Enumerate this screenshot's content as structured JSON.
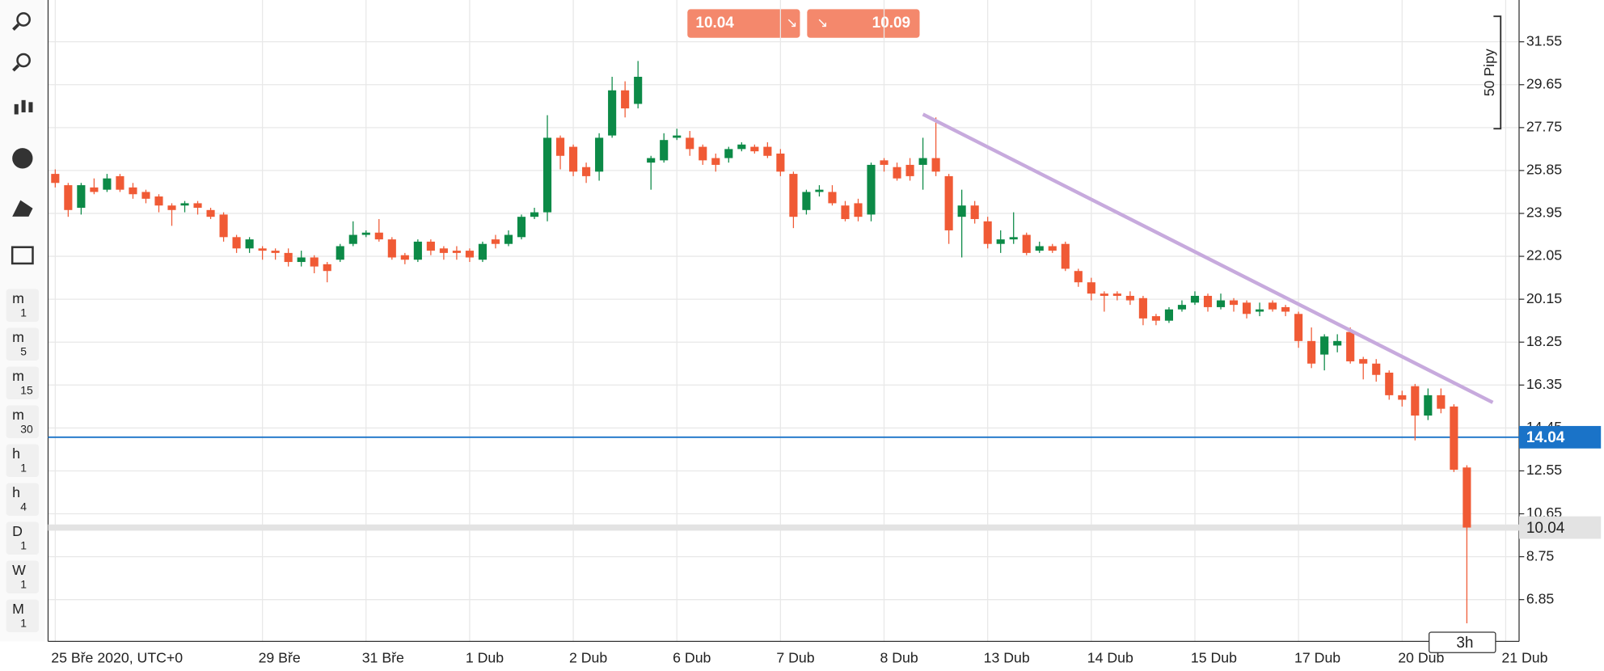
{
  "toolbar": {
    "timeframes": [
      [
        "m",
        "1"
      ],
      [
        "m",
        "5"
      ],
      [
        "m",
        "15"
      ],
      [
        "m",
        "30"
      ],
      [
        "h",
        "1"
      ],
      [
        "h",
        "4"
      ],
      [
        "D",
        "1"
      ],
      [
        "W",
        "1"
      ],
      [
        "M",
        "1"
      ]
    ]
  },
  "trade_buttons": {
    "sell": 10.04,
    "buy": 10.09
  },
  "chart_data": {
    "type": "candlestick",
    "categories": [
      "25 Bře 2020, UTC+0",
      null,
      null,
      null,
      null,
      null,
      null,
      null,
      null,
      null,
      null,
      null,
      null,
      null,
      null,
      null,
      "29 Bře",
      null,
      null,
      null,
      null,
      null,
      null,
      null,
      "31 Bře",
      null,
      null,
      null,
      null,
      null,
      null,
      null,
      "1 Dub",
      null,
      null,
      null,
      null,
      null,
      null,
      null,
      "2 Dub",
      null,
      null,
      null,
      null,
      null,
      null,
      null,
      "6 Dub",
      null,
      null,
      null,
      null,
      null,
      null,
      null,
      "7 Dub",
      null,
      null,
      null,
      null,
      null,
      null,
      null,
      "8 Dub",
      null,
      null,
      null,
      null,
      null,
      null,
      null,
      "13 Dub",
      null,
      null,
      null,
      null,
      null,
      null,
      null,
      "14 Dub",
      null,
      null,
      null,
      null,
      null,
      null,
      null,
      "15 Dub",
      null,
      null,
      null,
      null,
      null,
      null,
      null,
      "17 Dub",
      null,
      null,
      null,
      null,
      null,
      null,
      null,
      "20 Dub",
      null,
      null,
      null,
      null,
      null,
      null,
      null,
      "21 Dub"
    ],
    "open": [
      25.7,
      25.2,
      24.2,
      25.1,
      25.0,
      25.6,
      25.1,
      24.9,
      24.7,
      24.3,
      24.3,
      24.4,
      24.1,
      23.9,
      22.9,
      22.4,
      22.4,
      22.3,
      22.2,
      21.8,
      22.0,
      21.7,
      21.9,
      22.6,
      23.0,
      23.1,
      22.8,
      22.1,
      21.9,
      22.7,
      22.4,
      22.3,
      22.3,
      21.9,
      22.8,
      22.6,
      22.9,
      23.8,
      24.0,
      27.3,
      26.9,
      26.0,
      25.8,
      27.4,
      29.4,
      28.8,
      26.2,
      26.3,
      27.3,
      27.3,
      26.9,
      26.4,
      26.4,
      26.8,
      26.9,
      26.9,
      26.6,
      25.7,
      24.1,
      24.9,
      24.9,
      24.3,
      24.4,
      23.9,
      26.3,
      26.0,
      26.1,
      26.1,
      26.4,
      25.6,
      23.8,
      24.3,
      23.6,
      22.6,
      22.8,
      23.0,
      22.3,
      22.5,
      22.6,
      21.4,
      20.9,
      20.4,
      20.4,
      20.3,
      20.2,
      19.4,
      19.2,
      19.7,
      20.0,
      20.3,
      19.8,
      20.1,
      20.0,
      19.6,
      20.0,
      19.8,
      19.5,
      18.3,
      17.7,
      18.1,
      18.7,
      17.5,
      17.3,
      16.9,
      15.9,
      16.3,
      15.0,
      15.9,
      15.4,
      12.7,
      null,
      null,
      null
    ],
    "high": [
      25.9,
      25.3,
      25.3,
      25.5,
      25.7,
      25.7,
      25.3,
      25.0,
      24.8,
      24.4,
      24.5,
      24.5,
      24.2,
      24.0,
      23.0,
      22.9,
      22.5,
      22.4,
      22.4,
      22.3,
      22.1,
      21.8,
      22.6,
      23.6,
      23.2,
      23.7,
      22.9,
      22.2,
      22.8,
      22.8,
      22.5,
      22.5,
      22.4,
      22.7,
      23.0,
      23.2,
      23.9,
      24.2,
      28.3,
      27.4,
      27.0,
      26.2,
      27.5,
      30.0,
      29.8,
      30.7,
      26.5,
      27.5,
      27.7,
      27.6,
      27.0,
      26.6,
      26.9,
      27.1,
      27.0,
      27.1,
      26.8,
      25.8,
      25.0,
      25.2,
      25.2,
      24.5,
      24.6,
      26.2,
      26.4,
      26.2,
      26.4,
      27.3,
      28.2,
      25.7,
      25.0,
      24.5,
      23.8,
      23.2,
      24.0,
      23.1,
      22.7,
      22.6,
      22.7,
      21.5,
      21.1,
      20.5,
      20.5,
      20.5,
      20.3,
      19.5,
      19.8,
      20.1,
      20.5,
      20.4,
      20.4,
      20.2,
      20.1,
      20.0,
      20.1,
      19.9,
      19.6,
      18.9,
      18.6,
      18.6,
      18.9,
      17.6,
      17.5,
      17.0,
      16.1,
      16.4,
      16.2,
      16.2,
      15.5,
      12.8,
      null,
      null,
      null
    ],
    "low": [
      25.1,
      23.8,
      23.9,
      24.8,
      24.9,
      24.9,
      24.6,
      24.4,
      24.0,
      23.4,
      24.0,
      23.9,
      23.7,
      22.7,
      22.2,
      22.2,
      21.9,
      21.9,
      21.6,
      21.6,
      21.3,
      20.9,
      21.8,
      22.5,
      22.9,
      22.7,
      21.9,
      21.7,
      21.8,
      22.1,
      21.9,
      21.9,
      21.8,
      21.8,
      22.4,
      22.5,
      22.8,
      23.7,
      23.6,
      25.9,
      25.6,
      25.3,
      25.4,
      27.3,
      28.2,
      28.6,
      25.0,
      26.2,
      27.2,
      26.5,
      26.1,
      25.8,
      26.2,
      26.7,
      26.6,
      26.4,
      25.6,
      23.3,
      23.9,
      24.7,
      24.3,
      23.6,
      23.6,
      23.6,
      25.8,
      25.4,
      25.4,
      25.0,
      25.6,
      22.6,
      22.0,
      23.5,
      22.4,
      22.2,
      22.6,
      22.1,
      22.2,
      22.2,
      21.4,
      20.7,
      20.1,
      19.6,
      20.1,
      19.9,
      19.0,
      19.0,
      19.1,
      19.6,
      19.9,
      19.6,
      19.7,
      19.6,
      19.3,
      19.4,
      19.6,
      19.4,
      18.0,
      17.1,
      17.0,
      17.8,
      17.3,
      16.6,
      16.5,
      15.7,
      15.4,
      13.9,
      14.8,
      15.1,
      12.5,
      5.8,
      null,
      null,
      null
    ],
    "close": [
      25.3,
      24.1,
      25.2,
      24.9,
      25.5,
      25.0,
      24.8,
      24.6,
      24.3,
      24.1,
      24.4,
      24.2,
      23.8,
      22.9,
      22.4,
      22.8,
      22.3,
      22.2,
      21.8,
      22.0,
      21.6,
      21.4,
      22.5,
      23.0,
      23.1,
      22.8,
      22.0,
      21.9,
      22.7,
      22.3,
      22.2,
      22.2,
      22.0,
      22.6,
      22.6,
      23.0,
      23.8,
      24.0,
      27.3,
      26.5,
      25.8,
      25.6,
      27.3,
      29.4,
      28.6,
      30.0,
      26.4,
      27.2,
      27.4,
      26.8,
      26.3,
      26.1,
      26.8,
      27.0,
      26.7,
      26.5,
      25.8,
      23.8,
      24.9,
      25.0,
      24.4,
      23.7,
      23.8,
      26.1,
      26.1,
      25.5,
      25.6,
      26.4,
      25.8,
      23.2,
      24.3,
      23.7,
      22.6,
      22.8,
      22.9,
      22.2,
      22.5,
      22.3,
      21.5,
      20.9,
      20.4,
      20.3,
      20.3,
      20.1,
      19.3,
      19.2,
      19.7,
      19.9,
      20.3,
      19.8,
      20.1,
      19.9,
      19.5,
      19.7,
      19.7,
      19.6,
      18.3,
      17.3,
      18.5,
      18.3,
      17.4,
      17.3,
      16.8,
      15.9,
      15.7,
      15.0,
      15.9,
      15.3,
      12.6,
      10.04,
      null,
      null,
      null
    ],
    "up_color": "#0c8a47",
    "down_color": "#f05a35",
    "ylim": [
      5.0,
      33.4
    ],
    "yticks": [
      31.55,
      29.65,
      27.75,
      25.85,
      23.95,
      22.05,
      20.15,
      18.25,
      16.35,
      14.45,
      12.55,
      10.65,
      8.75,
      6.85
    ],
    "grid": true,
    "price_lines": [
      {
        "value": 14.04,
        "color": "#1a73c8"
      },
      {
        "value": 10.04,
        "color": "#e3e3e3"
      }
    ],
    "trendline": {
      "color": "#c7aadd",
      "x": [
        67,
        111
      ],
      "y": [
        28.34,
        15.58
      ]
    },
    "annotation": "50 Pipy",
    "timeframe": "3h"
  }
}
